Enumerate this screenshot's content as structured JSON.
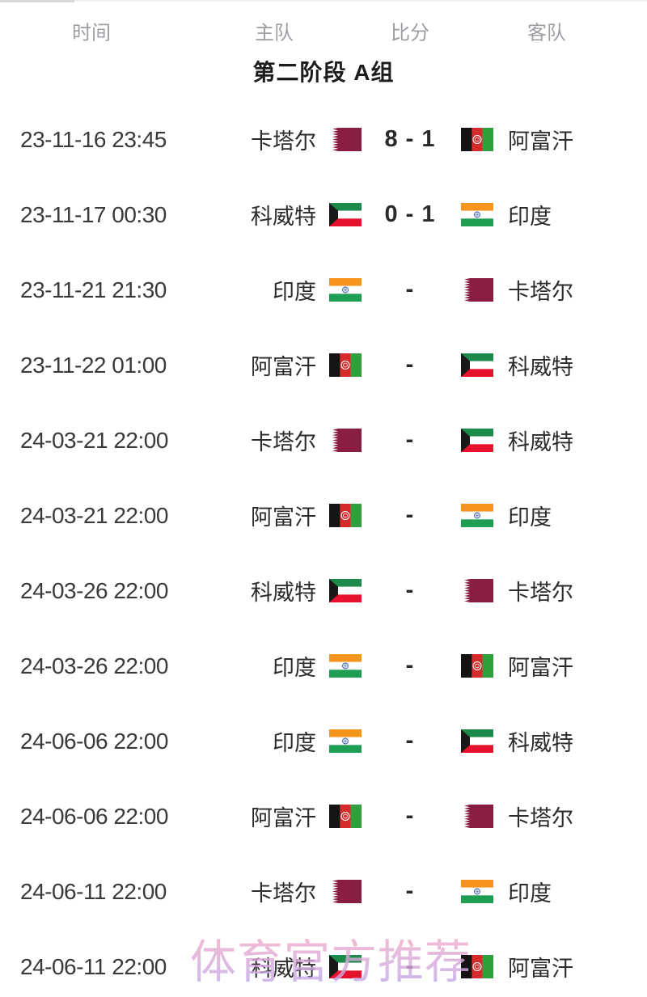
{
  "header": {
    "time": "时间",
    "home": "主队",
    "score": "比分",
    "away": "客队"
  },
  "group_title": "第二阶段 A组",
  "watermark": "体育官方推荐",
  "colors": {
    "header_text": "#9b9ea3",
    "body_text": "#2b2b2b",
    "qatar_maroon": "#8A1E41",
    "kuwait_green": "#1B8A4B",
    "kuwait_red": "#E8112D",
    "india_saffron": "#F7941E",
    "india_green": "#1D9E53",
    "india_chakra_blue": "#3A5BA9",
    "afghanistan_red": "#D42C2C",
    "afghanistan_green": "#2FA03C",
    "watermark_pink": "#f3a9c6",
    "watermark_purple": "#b4a5ea"
  },
  "matches": [
    {
      "time": "23-11-16 23:45",
      "home": {
        "name": "卡塔尔",
        "flag": "qatar"
      },
      "score": "8 - 1",
      "away": {
        "name": "阿富汗",
        "flag": "afghanistan"
      }
    },
    {
      "time": "23-11-17 00:30",
      "home": {
        "name": "科威特",
        "flag": "kuwait"
      },
      "score": "0 - 1",
      "away": {
        "name": "印度",
        "flag": "india"
      }
    },
    {
      "time": "23-11-21 21:30",
      "home": {
        "name": "印度",
        "flag": "india"
      },
      "score": "-",
      "away": {
        "name": "卡塔尔",
        "flag": "qatar"
      }
    },
    {
      "time": "23-11-22 01:00",
      "home": {
        "name": "阿富汗",
        "flag": "afghanistan"
      },
      "score": "-",
      "away": {
        "name": "科威特",
        "flag": "kuwait"
      }
    },
    {
      "time": "24-03-21 22:00",
      "home": {
        "name": "卡塔尔",
        "flag": "qatar"
      },
      "score": "-",
      "away": {
        "name": "科威特",
        "flag": "kuwait"
      }
    },
    {
      "time": "24-03-21 22:00",
      "home": {
        "name": "阿富汗",
        "flag": "afghanistan"
      },
      "score": "-",
      "away": {
        "name": "印度",
        "flag": "india"
      }
    },
    {
      "time": "24-03-26 22:00",
      "home": {
        "name": "科威特",
        "flag": "kuwait"
      },
      "score": "-",
      "away": {
        "name": "卡塔尔",
        "flag": "qatar"
      }
    },
    {
      "time": "24-03-26 22:00",
      "home": {
        "name": "印度",
        "flag": "india"
      },
      "score": "-",
      "away": {
        "name": "阿富汗",
        "flag": "afghanistan"
      }
    },
    {
      "time": "24-06-06 22:00",
      "home": {
        "name": "印度",
        "flag": "india"
      },
      "score": "-",
      "away": {
        "name": "科威特",
        "flag": "kuwait"
      }
    },
    {
      "time": "24-06-06 22:00",
      "home": {
        "name": "阿富汗",
        "flag": "afghanistan"
      },
      "score": "-",
      "away": {
        "name": "卡塔尔",
        "flag": "qatar"
      }
    },
    {
      "time": "24-06-11 22:00",
      "home": {
        "name": "卡塔尔",
        "flag": "qatar"
      },
      "score": "-",
      "away": {
        "name": "印度",
        "flag": "india"
      }
    },
    {
      "time": "24-06-11 22:00",
      "home": {
        "name": "科威特",
        "flag": "kuwait"
      },
      "score": "-",
      "away": {
        "name": "阿富汗",
        "flag": "afghanistan"
      }
    }
  ]
}
